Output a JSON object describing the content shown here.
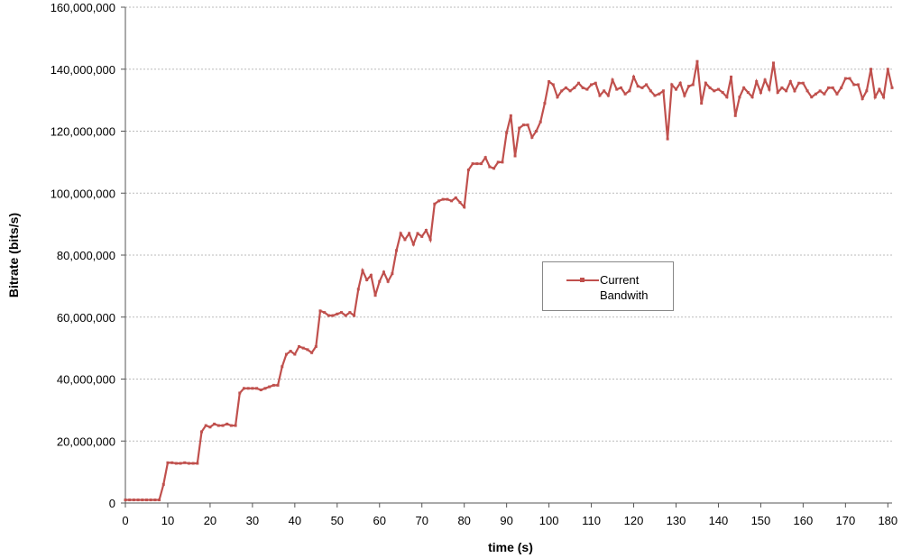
{
  "chart_data": {
    "type": "line",
    "xlabel": "time (s)",
    "ylabel": "Bitrate (bits/s)",
    "x": [
      0,
      1,
      2,
      3,
      4,
      5,
      6,
      7,
      8,
      9,
      10,
      11,
      12,
      13,
      14,
      15,
      16,
      17,
      18,
      19,
      20,
      21,
      22,
      23,
      24,
      25,
      26,
      27,
      28,
      29,
      30,
      31,
      32,
      33,
      34,
      35,
      36,
      37,
      38,
      39,
      40,
      41,
      42,
      43,
      44,
      45,
      46,
      47,
      48,
      49,
      50,
      51,
      52,
      53,
      54,
      55,
      56,
      57,
      58,
      59,
      60,
      61,
      62,
      63,
      64,
      65,
      66,
      67,
      68,
      69,
      70,
      71,
      72,
      73,
      74,
      75,
      76,
      77,
      78,
      79,
      80,
      81,
      82,
      83,
      84,
      85,
      86,
      87,
      88,
      89,
      90,
      91,
      92,
      93,
      94,
      95,
      96,
      97,
      98,
      99,
      100,
      101,
      102,
      103,
      104,
      105,
      106,
      107,
      108,
      109,
      110,
      111,
      112,
      113,
      114,
      115,
      116,
      117,
      118,
      119,
      120,
      121,
      122,
      123,
      124,
      125,
      126,
      127,
      128,
      129,
      130,
      131,
      132,
      133,
      134,
      135,
      136,
      137,
      138,
      139,
      140,
      141,
      142,
      143,
      144,
      145,
      146,
      147,
      148,
      149,
      150,
      151,
      152,
      153,
      154,
      155,
      156,
      157,
      158,
      159,
      160,
      161,
      162,
      163,
      164,
      165,
      166,
      167,
      168,
      169,
      170,
      171,
      172,
      173,
      174,
      175,
      176,
      177,
      178,
      179,
      180,
      181
    ],
    "series": [
      {
        "name": "Current Bandwith",
        "color": "#c0504d",
        "values": [
          1000000,
          1000000,
          1000000,
          1000000,
          1000000,
          1000000,
          1000000,
          1000000,
          1000000,
          6000000,
          13000000,
          13000000,
          12800000,
          12800000,
          13000000,
          12800000,
          12800000,
          12800000,
          23000000,
          25000000,
          24500000,
          25500000,
          25000000,
          25000000,
          25500000,
          25000000,
          25000000,
          35500000,
          37000000,
          37000000,
          37000000,
          37000000,
          36500000,
          37000000,
          37500000,
          38000000,
          38000000,
          44000000,
          48000000,
          49000000,
          48000000,
          50500000,
          50000000,
          49500000,
          48500000,
          50500000,
          62000000,
          61500000,
          60500000,
          60500000,
          61000000,
          61500000,
          60500000,
          61500000,
          60500000,
          69000000,
          75000000,
          72000000,
          73500000,
          67000000,
          71500000,
          74500000,
          71500000,
          74000000,
          81500000,
          87000000,
          85000000,
          87000000,
          83500000,
          87000000,
          86000000,
          88000000,
          85000000,
          96500000,
          97500000,
          98000000,
          98000000,
          97500000,
          98500000,
          97000000,
          95500000,
          107500000,
          109500000,
          109500000,
          109500000,
          111500000,
          108500000,
          108000000,
          110000000,
          110000000,
          119500000,
          125000000,
          112000000,
          121000000,
          122000000,
          122000000,
          118000000,
          120000000,
          123000000,
          129000000,
          136000000,
          135000000,
          131000000,
          133000000,
          134000000,
          133000000,
          134000000,
          135500000,
          134000000,
          133500000,
          135000000,
          135500000,
          131500000,
          133000000,
          131500000,
          136500000,
          133500000,
          134000000,
          132000000,
          133000000,
          137500000,
          134500000,
          134000000,
          135000000,
          133000000,
          131500000,
          132000000,
          133000000,
          117500000,
          135000000,
          133500000,
          135500000,
          131500000,
          134500000,
          135000000,
          142500000,
          129000000,
          135500000,
          134000000,
          133000000,
          133500000,
          132500000,
          131000000,
          137500000,
          125000000,
          131000000,
          134000000,
          132500000,
          131000000,
          136000000,
          132500000,
          136500000,
          133500000,
          142000000,
          132500000,
          134000000,
          133000000,
          136000000,
          133000000,
          135500000,
          135500000,
          133000000,
          131000000,
          132000000,
          133000000,
          132000000,
          134000000,
          134000000,
          132000000,
          134000000,
          137000000,
          137000000,
          135000000,
          135000000,
          130500000,
          133000000,
          140000000,
          131000000,
          133500000,
          131000000,
          140000000,
          134000000
        ]
      }
    ],
    "xlim": [
      0,
      181
    ],
    "xticks": [
      0,
      10,
      20,
      30,
      40,
      50,
      60,
      70,
      80,
      90,
      100,
      110,
      120,
      130,
      140,
      150,
      160,
      170,
      180
    ],
    "ylim": [
      0,
      160000000
    ],
    "yticks": [
      {
        "value": 0,
        "label": "0"
      },
      {
        "value": 20000000,
        "label": "20,000,000"
      },
      {
        "value": 40000000,
        "label": "40,000,000"
      },
      {
        "value": 60000000,
        "label": "60,000,000"
      },
      {
        "value": 80000000,
        "label": "80,000,000"
      },
      {
        "value": 100000000,
        "label": "100,000,000"
      },
      {
        "value": 120000000,
        "label": "120,000,000"
      },
      {
        "value": 140000000,
        "label": "140,000,000"
      },
      {
        "value": 160000000,
        "label": "160,000,000"
      }
    ],
    "grid": true,
    "legend": "right"
  }
}
